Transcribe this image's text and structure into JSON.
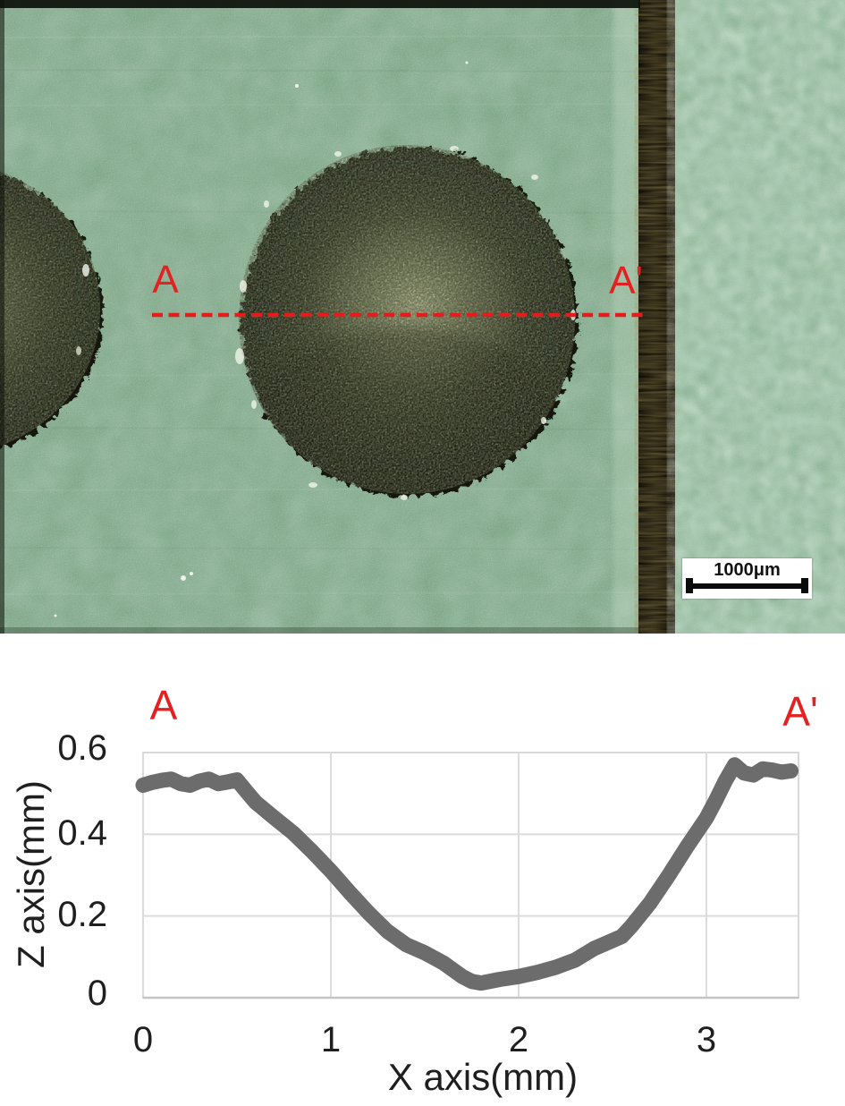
{
  "figure": {
    "micrograph": {
      "description": "optical micrograph of dimple on green metallic surface with section line",
      "label_a": "A",
      "label_a_prime": "A'",
      "scale_bar": {
        "label": "1000μm"
      },
      "section_line_color": "#e31c1c"
    },
    "chart": {
      "label_a": "A",
      "label_a_prime": "A'",
      "y_axis_title": "Z axis(mm)",
      "x_axis_title": "X axis(mm)",
      "y_tick_labels": [
        "0.6",
        "0.4",
        "0.2",
        "0"
      ],
      "x_tick_labels": [
        "0",
        "1",
        "2",
        "3"
      ]
    }
  },
  "chart_data": {
    "type": "line",
    "title": "",
    "xlabel": "X axis(mm)",
    "ylabel": "Z axis(mm)",
    "xlim": [
      0,
      3.5
    ],
    "ylim": [
      0,
      0.6
    ],
    "x_ticks": [
      0,
      1,
      2,
      3
    ],
    "y_ticks": [
      0,
      0.2,
      0.4,
      0.6
    ],
    "grid": true,
    "legend": "none",
    "annotations": [
      "A",
      "A'"
    ],
    "line_color": "#6c6c6c",
    "grid_color": "#d9d9d9",
    "series": [
      {
        "name": "A-A' cross-section surface profile",
        "color": "#6c6c6c",
        "x": [
          0.0,
          0.05,
          0.1,
          0.15,
          0.2,
          0.25,
          0.3,
          0.35,
          0.4,
          0.45,
          0.5,
          0.55,
          0.6,
          0.7,
          0.8,
          0.9,
          1.0,
          1.1,
          1.2,
          1.3,
          1.4,
          1.5,
          1.6,
          1.7,
          1.75,
          1.8,
          1.9,
          2.0,
          2.1,
          2.2,
          2.3,
          2.4,
          2.5,
          2.55,
          2.6,
          2.7,
          2.8,
          2.9,
          3.0,
          3.05,
          3.1,
          3.15,
          3.2,
          3.25,
          3.3,
          3.35,
          3.4,
          3.45
        ],
        "z": [
          0.52,
          0.527,
          0.532,
          0.535,
          0.524,
          0.52,
          0.53,
          0.535,
          0.524,
          0.528,
          0.533,
          0.505,
          0.478,
          0.44,
          0.403,
          0.358,
          0.31,
          0.258,
          0.208,
          0.163,
          0.13,
          0.11,
          0.085,
          0.052,
          0.04,
          0.036,
          0.045,
          0.052,
          0.062,
          0.075,
          0.092,
          0.12,
          0.14,
          0.15,
          0.175,
          0.232,
          0.3,
          0.372,
          0.44,
          0.483,
          0.53,
          0.57,
          0.55,
          0.545,
          0.56,
          0.557,
          0.552,
          0.555
        ]
      }
    ]
  }
}
